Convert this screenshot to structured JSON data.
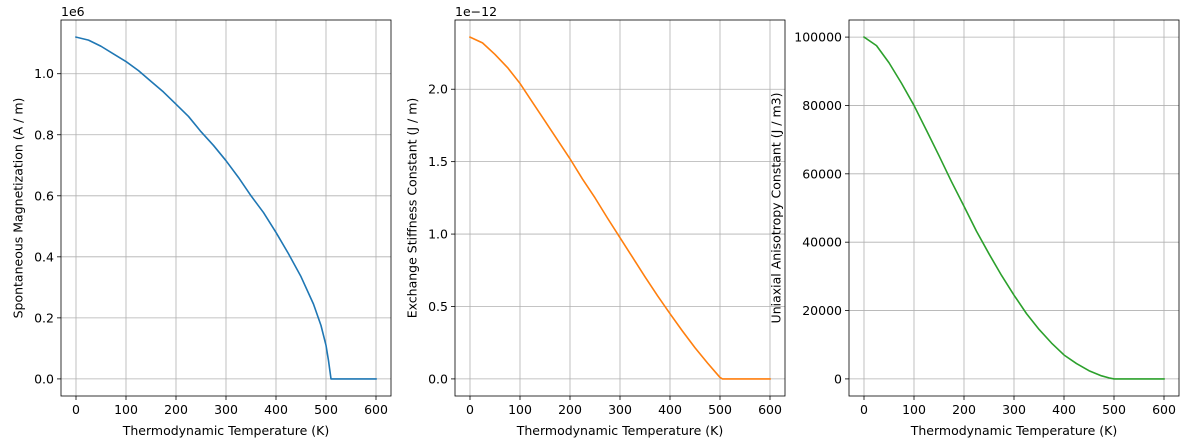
{
  "chart_data": [
    {
      "type": "line",
      "xlabel": "Thermodynamic Temperature (K)",
      "ylabel": "Spontaneous Magnetization (A / m)",
      "offset_text": "1e6",
      "xlim": [
        -30,
        630
      ],
      "ylim": [
        -0.056,
        1.176
      ],
      "xticks": [
        0,
        100,
        200,
        300,
        400,
        500,
        600
      ],
      "xtick_labels": [
        "0",
        "100",
        "200",
        "300",
        "400",
        "500",
        "600"
      ],
      "yticks": [
        0.0,
        0.2,
        0.4,
        0.6,
        0.8,
        1.0
      ],
      "ytick_labels": [
        "0.0",
        "0.2",
        "0.4",
        "0.6",
        "0.8",
        "1.0"
      ],
      "grid": true,
      "series": [
        {
          "name": "Spontaneous Magnetization",
          "color": "#1f77b4",
          "x": [
            0,
            25,
            50,
            75,
            100,
            125,
            150,
            175,
            200,
            225,
            250,
            275,
            300,
            325,
            350,
            375,
            400,
            425,
            450,
            475,
            490,
            500,
            505,
            510,
            550,
            600
          ],
          "y": [
            1.12,
            1.11,
            1.09,
            1.065,
            1.04,
            1.01,
            0.975,
            0.94,
            0.9,
            0.86,
            0.81,
            0.765,
            0.715,
            0.66,
            0.6,
            0.545,
            0.48,
            0.41,
            0.335,
            0.245,
            0.175,
            0.11,
            0.06,
            0.0,
            0.0,
            0.0
          ]
        }
      ]
    },
    {
      "type": "line",
      "xlabel": "Thermodynamic Temperature (K)",
      "ylabel": "Exchange Stiffness Constant (J / m)",
      "offset_text": "1e−12",
      "xlim": [
        -30,
        630
      ],
      "ylim": [
        -0.118,
        2.478
      ],
      "xticks": [
        0,
        100,
        200,
        300,
        400,
        500,
        600
      ],
      "xtick_labels": [
        "0",
        "100",
        "200",
        "300",
        "400",
        "500",
        "600"
      ],
      "yticks": [
        0.0,
        0.5,
        1.0,
        1.5,
        2.0
      ],
      "ytick_labels": [
        "0.0",
        "0.5",
        "1.0",
        "1.5",
        "2.0"
      ],
      "grid": true,
      "series": [
        {
          "name": "Exchange Stiffness Constant",
          "color": "#ff7f0e",
          "x": [
            0,
            25,
            50,
            75,
            100,
            125,
            150,
            175,
            200,
            225,
            250,
            275,
            300,
            325,
            350,
            375,
            400,
            425,
            450,
            475,
            490,
            500,
            505,
            550,
            600
          ],
          "y": [
            2.36,
            2.32,
            2.24,
            2.15,
            2.04,
            1.91,
            1.78,
            1.65,
            1.52,
            1.38,
            1.25,
            1.11,
            0.975,
            0.84,
            0.705,
            0.575,
            0.45,
            0.33,
            0.215,
            0.11,
            0.05,
            0.01,
            0.0,
            0.0,
            0.0
          ]
        }
      ]
    },
    {
      "type": "line",
      "xlabel": "Thermodynamic Temperature (K)",
      "ylabel": "Uniaxial Anisotropy Constant (J / m3)",
      "offset_text": "",
      "xlim": [
        -30,
        630
      ],
      "ylim": [
        -5000,
        105000
      ],
      "xticks": [
        0,
        100,
        200,
        300,
        400,
        500,
        600
      ],
      "xtick_labels": [
        "0",
        "100",
        "200",
        "300",
        "400",
        "500",
        "600"
      ],
      "yticks": [
        0,
        20000,
        40000,
        60000,
        80000,
        100000
      ],
      "ytick_labels": [
        "0",
        "20000",
        "40000",
        "60000",
        "80000",
        "100000"
      ],
      "grid": true,
      "series": [
        {
          "name": "Uniaxial Anisotropy Constant",
          "color": "#2ca02c",
          "x": [
            0,
            25,
            50,
            75,
            100,
            125,
            150,
            175,
            200,
            225,
            250,
            275,
            300,
            325,
            350,
            375,
            400,
            425,
            450,
            475,
            490,
            500,
            550,
            600
          ],
          "y": [
            100000,
            97500,
            92500,
            86500,
            80000,
            72700,
            65300,
            57700,
            50500,
            43200,
            36600,
            30300,
            24500,
            19100,
            14500,
            10500,
            7000,
            4500,
            2400,
            900,
            300,
            0,
            0,
            0
          ]
        }
      ]
    }
  ]
}
